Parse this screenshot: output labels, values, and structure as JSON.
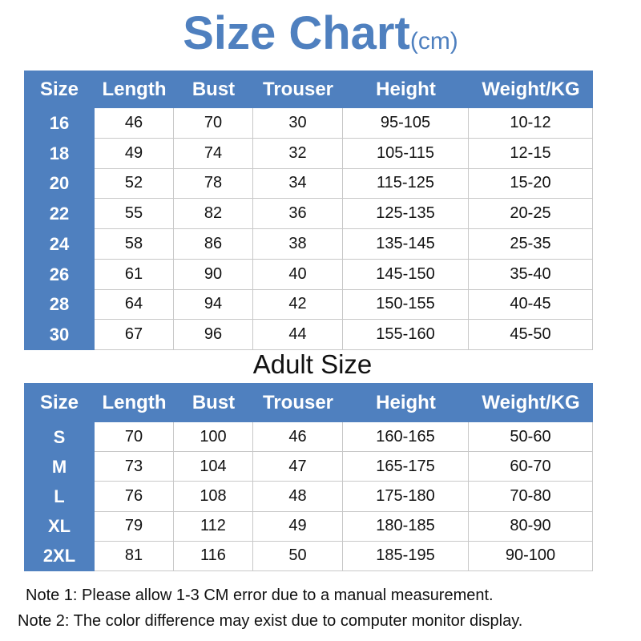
{
  "header": {
    "title": "Size Chart",
    "unit": "(cm)"
  },
  "kids_table": {
    "columns": [
      "Size",
      "Length",
      "Bust",
      "Trouser",
      "Height",
      "Weight/KG"
    ],
    "rows": [
      [
        "16",
        "46",
        "70",
        "30",
        "95-105",
        "10-12"
      ],
      [
        "18",
        "49",
        "74",
        "32",
        "105-115",
        "12-15"
      ],
      [
        "20",
        "52",
        "78",
        "34",
        "115-125",
        "15-20"
      ],
      [
        "22",
        "55",
        "82",
        "36",
        "125-135",
        "20-25"
      ],
      [
        "24",
        "58",
        "86",
        "38",
        "135-145",
        "25-35"
      ],
      [
        "26",
        "61",
        "90",
        "40",
        "145-150",
        "35-40"
      ],
      [
        "28",
        "64",
        "94",
        "42",
        "150-155",
        "40-45"
      ],
      [
        "30",
        "67",
        "96",
        "44",
        "155-160",
        "45-50"
      ]
    ]
  },
  "adult_heading": "Adult Size",
  "adult_table": {
    "columns": [
      "Size",
      "Length",
      "Bust",
      "Trouser",
      "Height",
      "Weight/KG"
    ],
    "rows": [
      [
        "S",
        "70",
        "100",
        "46",
        "160-165",
        "50-60"
      ],
      [
        "M",
        "73",
        "104",
        "47",
        "165-175",
        "60-70"
      ],
      [
        "L",
        "76",
        "108",
        "48",
        "175-180",
        "70-80"
      ],
      [
        "XL",
        "79",
        "112",
        "49",
        "180-185",
        "80-90"
      ],
      [
        "2XL",
        "81",
        "116",
        "50",
        "185-195",
        "90-100"
      ]
    ]
  },
  "notes": [
    "Note 1: Please allow 1-3 CM error due to a manual measurement.",
    "Note 2: The color difference may exist due to computer monitor display."
  ]
}
